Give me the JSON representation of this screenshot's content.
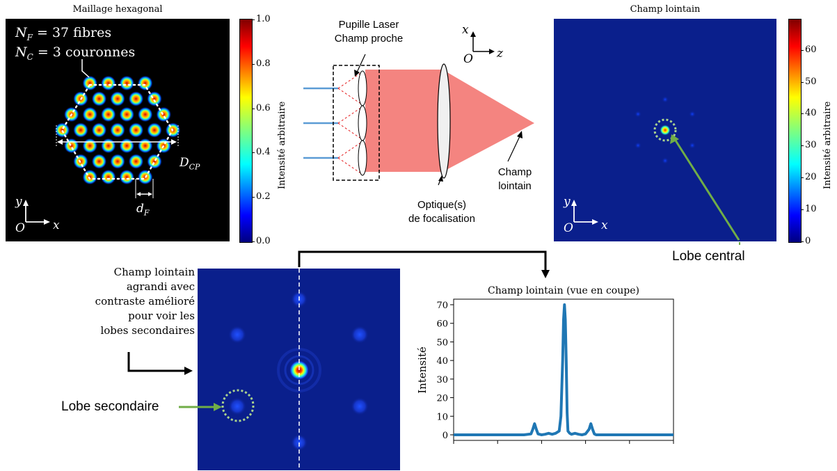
{
  "panel_hex": {
    "title": "Maillage hexagonal",
    "nf_label": "N",
    "nf_sub": "F",
    "nf_text": " = 37 fibres",
    "nc_label": "N",
    "nc_sub": "C",
    "nc_text": " = 3 couronnes",
    "dcp_label": "D",
    "dcp_sub": "CP",
    "df_label": "d",
    "df_sub": "F",
    "axis_y": "y",
    "axis_x": "x",
    "axis_o": "O",
    "colorbar": {
      "label": "Intensité arbitraire",
      "ticks": [
        "1.0",
        "0.8",
        "0.6",
        "0.4",
        "0.2",
        "0.0"
      ]
    },
    "colors": {
      "bg": "#000000"
    }
  },
  "panel_setup": {
    "pupil_label_1": "Pupille Laser",
    "pupil_label_2": "Champ proche",
    "axis_x": "x",
    "axis_z": "z",
    "axis_o": "O",
    "optics_label_1": "Optique(s)",
    "optics_label_2": "de focalisation",
    "far_label_1": "Champ",
    "far_label_2": "lointain",
    "colors": {
      "beam": "#f48480",
      "fiber": "#5b9bd5",
      "dash": "#e41a1c"
    }
  },
  "panel_far": {
    "title": "Champ lointain",
    "axis_y": "y",
    "axis_x": "x",
    "axis_o": "O",
    "central_lobe_label": "Lobe central",
    "colorbar": {
      "label": "Intensité arbitraire",
      "ticks": [
        "60",
        "50",
        "40",
        "30",
        "20",
        "10",
        "0"
      ]
    },
    "colors": {
      "bg": "#0a1f8c",
      "arrow": "#70ad47"
    }
  },
  "panel_zoom": {
    "note_lines": [
      "Champ lointain",
      "agrandi avec",
      "contraste amélioré",
      "pour voir les",
      "lobes secondaires"
    ],
    "secondary_lobe_label": "Lobe secondaire"
  },
  "chart_data": {
    "type": "line",
    "title": "Champ lointain (vue en coupe)",
    "xlabel": "",
    "ylabel": "Intensité",
    "ylim": [
      -3,
      73
    ],
    "yticks": [
      0,
      10,
      20,
      30,
      40,
      50,
      60,
      70
    ],
    "series": [
      {
        "x": [
          0,
          60,
          80,
          88,
          90,
          92,
          94,
          96,
          100,
          104,
          108,
          112,
          116,
          120,
          122,
          124,
          125,
          126,
          127,
          128,
          129,
          130,
          132,
          134,
          138,
          142,
          146,
          150,
          154,
          156,
          158,
          160,
          162,
          164,
          170,
          190,
          250
        ],
        "values": [
          0,
          0,
          0,
          0.5,
          3,
          6,
          3,
          0.5,
          0,
          0.3,
          0.8,
          0.3,
          0.8,
          2,
          10,
          40,
          62,
          70,
          62,
          40,
          12,
          2,
          0.8,
          0.3,
          0.8,
          0.3,
          0,
          0.5,
          3,
          6,
          3,
          0.5,
          0,
          0,
          0,
          0,
          0
        ]
      }
    ],
    "colors": {
      "line": "#1f77b4"
    }
  }
}
